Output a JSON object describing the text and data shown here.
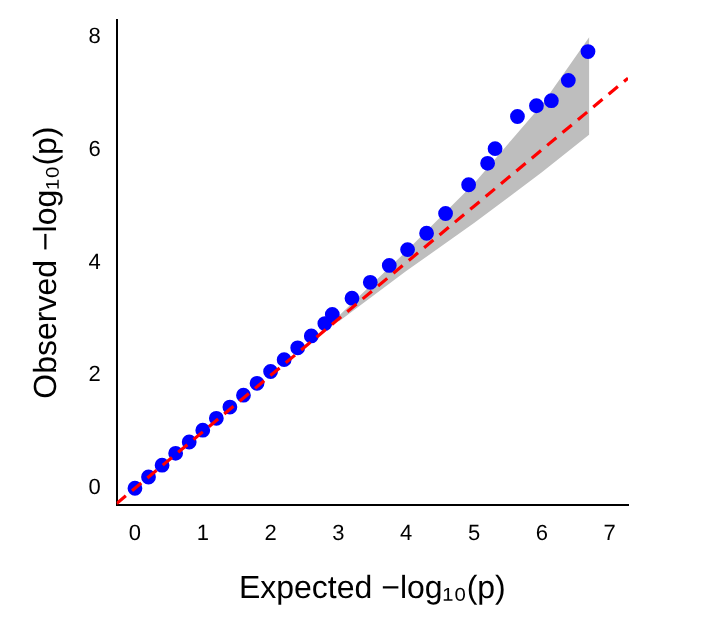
{
  "chart_data": {
    "type": "scatter",
    "xlabel": "Expected −log₁₀(p)",
    "ylabel": "Observed −log₁₀(p)",
    "xlim": [
      -0.27,
      7.27
    ],
    "ylim": [
      -0.3,
      8.3
    ],
    "xticks": [
      0,
      1,
      2,
      3,
      4,
      5,
      6,
      7
    ],
    "yticks": [
      0,
      2,
      4,
      6,
      8
    ],
    "grid": false,
    "legend": false,
    "marker": "circle",
    "series": [
      {
        "type": "line",
        "color": "#ff0000",
        "line_style": "dashed",
        "marker": "none",
        "x": [
          -0.27,
          3,
          4,
          5,
          6,
          6.7,
          7.27
        ],
        "values": [
          -0.27,
          3,
          4,
          5,
          6,
          6.7,
          7.27
        ],
        "lower": [
          null,
          2.95,
          3.85,
          4.7,
          5.6,
          6.27,
          null
        ],
        "upper": [
          null,
          3.05,
          4.2,
          5.4,
          6.8,
          8.0,
          null
        ]
      },
      {
        "color": "#0000ff",
        "x": [
          0,
          0.2,
          0.4,
          0.6,
          0.8,
          1,
          1.2,
          1.4,
          1.6,
          1.8,
          2,
          2.2,
          2.4,
          2.6,
          2.8,
          2.91,
          3.2,
          3.47,
          3.75,
          4.02,
          4.3,
          4.58,
          4.92,
          5.2,
          5.31,
          5.64,
          5.92,
          6.14,
          6.39,
          6.68
        ],
        "values": [
          0,
          0.2,
          0.41,
          0.62,
          0.82,
          1.03,
          1.24,
          1.44,
          1.65,
          1.86,
          2.07,
          2.28,
          2.49,
          2.7,
          2.92,
          3.08,
          3.37,
          3.65,
          3.95,
          4.23,
          4.52,
          4.87,
          5.38,
          5.76,
          6.02,
          6.59,
          6.78,
          6.87,
          7.23,
          7.74
        ]
      }
    ]
  }
}
